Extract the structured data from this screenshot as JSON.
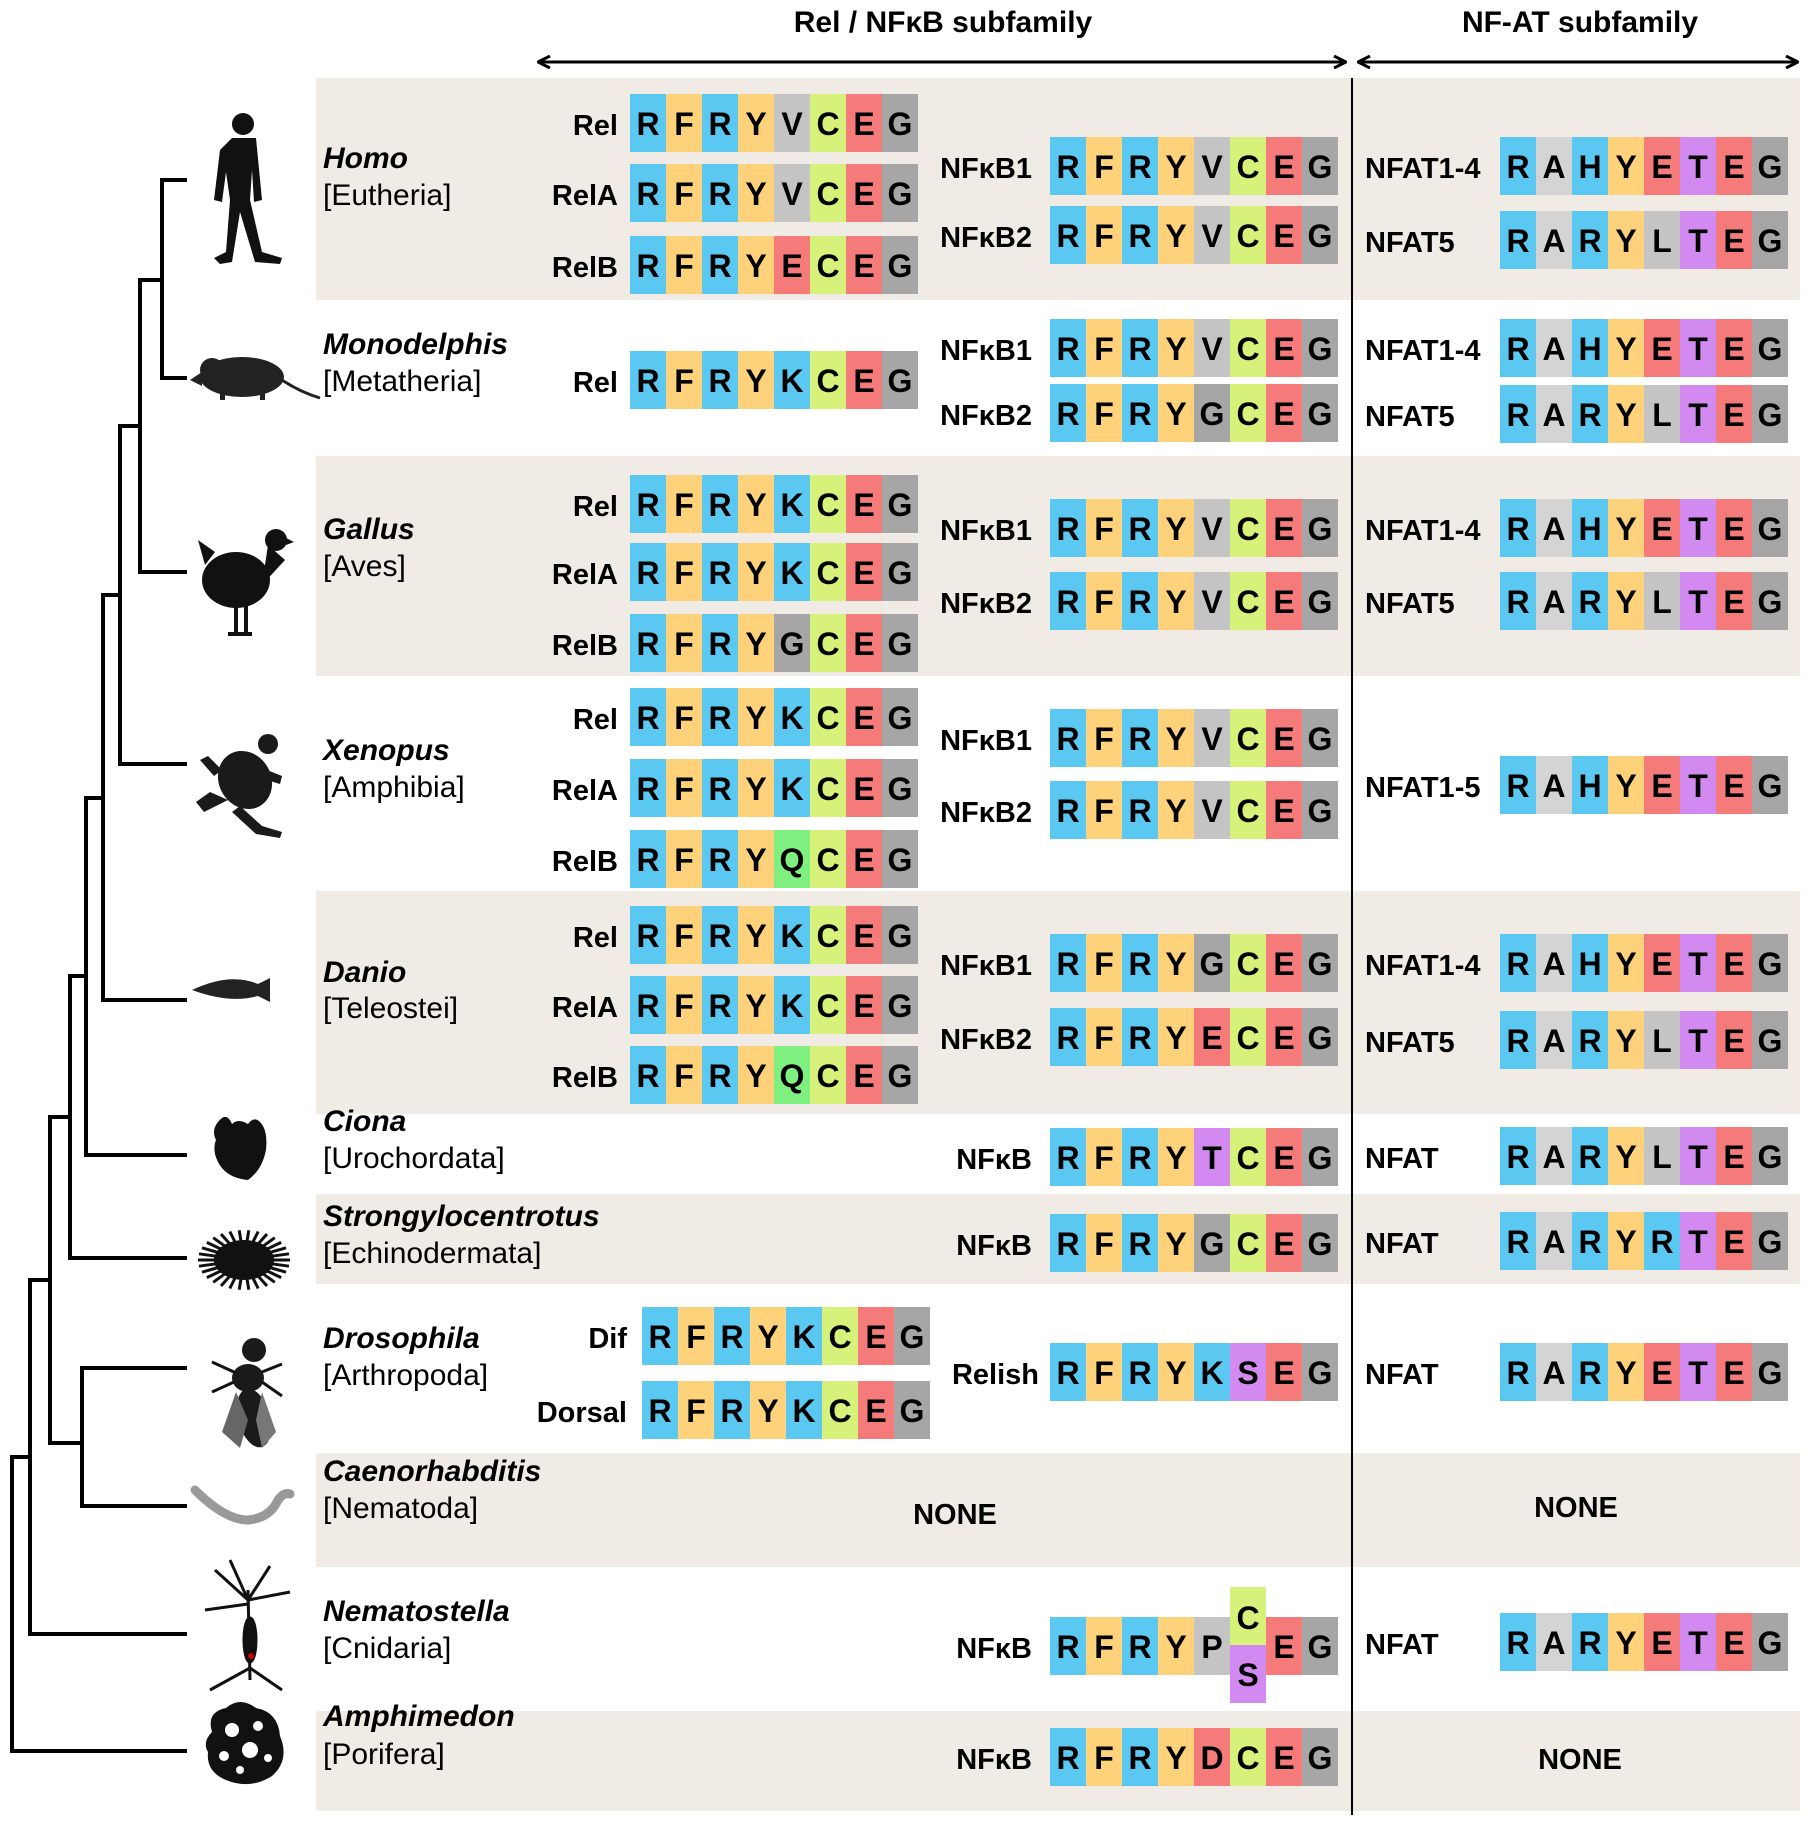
{
  "headers": {
    "rel_nfkb": "Rel / NFκB subfamily",
    "nfat": "NF-AT subfamily"
  },
  "colors": {
    "R": "#5ac8f0",
    "F": "#fdd27a",
    "Y": "#fdd27a",
    "C": "#d6f27a",
    "E": "#f57b7b",
    "G": "#a6a6a6",
    "V": "#c4c4c4",
    "K": "#5ac8f0",
    "A": "#d4d4d4",
    "H": "#5ac8f0",
    "T": "#d38af0",
    "L": "#c4c4c4",
    "Q": "#7fef7f",
    "S": "#d38af0",
    "P": "#c4c4c4",
    "D": "#f57b7b",
    "band": "#f1ebe6",
    "line": "#000000"
  },
  "icons": {
    "homo": "human-silhouette-icon",
    "monodelphis": "opossum-silhouette-icon",
    "gallus": "chicken-silhouette-icon",
    "xenopus": "frog-silhouette-icon",
    "danio": "zebrafish-silhouette-icon",
    "ciona": "sea-squirt-silhouette-icon",
    "strongylocentrotus": "sea-urchin-silhouette-icon",
    "drosophila": "fruit-fly-silhouette-icon",
    "caenorhabditis": "nematode-worm-icon",
    "nematostella": "sea-anemone-silhouette-icon",
    "amphimedon": "sponge-silhouette-icon"
  },
  "taxa": [
    {
      "genus": "Homo",
      "clade": "[Eutheria]",
      "shaded": true,
      "rel": [
        {
          "name": "Rel",
          "seq": "RFRYVCEG"
        },
        {
          "name": "RelA",
          "seq": "RFRYVCEG"
        },
        {
          "name": "RelB",
          "seq": "RFRYECEG"
        }
      ],
      "nfkb": [
        {
          "name": "NFκB1",
          "seq": "RFRYVCEG"
        },
        {
          "name": "NFκB2",
          "seq": "RFRYVCEG"
        }
      ],
      "nfat": [
        {
          "name": "NFAT1-4",
          "seq": "RAHYETEG"
        },
        {
          "name": "NFAT5",
          "seq": "RARYLTEG"
        }
      ]
    },
    {
      "genus": "Monodelphis",
      "clade": "[Metatheria]",
      "shaded": false,
      "rel": [
        {
          "name": "Rel",
          "seq": "RFRYKCEG"
        }
      ],
      "nfkb": [
        {
          "name": "NFκB1",
          "seq": "RFRYVCEG"
        },
        {
          "name": "NFκB2",
          "seq": "RFRYGCEG"
        }
      ],
      "nfat": [
        {
          "name": "NFAT1-4",
          "seq": "RAHYETEG"
        },
        {
          "name": "NFAT5",
          "seq": "RARYLTEG"
        }
      ]
    },
    {
      "genus": "Gallus",
      "clade": "[Aves]",
      "shaded": true,
      "rel": [
        {
          "name": "Rel",
          "seq": "RFRYKCEG"
        },
        {
          "name": "RelA",
          "seq": "RFRYKCEG"
        },
        {
          "name": "RelB",
          "seq": "RFRYGCEG"
        }
      ],
      "nfkb": [
        {
          "name": "NFκB1",
          "seq": "RFRYVCEG"
        },
        {
          "name": "NFκB2",
          "seq": "RFRYVCEG"
        }
      ],
      "nfat": [
        {
          "name": "NFAT1-4",
          "seq": "RAHYETEG"
        },
        {
          "name": "NFAT5",
          "seq": "RARYLTEG"
        }
      ]
    },
    {
      "genus": "Xenopus",
      "clade": "[Amphibia]",
      "shaded": false,
      "rel": [
        {
          "name": "Rel",
          "seq": "RFRYKCEG"
        },
        {
          "name": "RelA",
          "seq": "RFRYKCEG"
        },
        {
          "name": "RelB",
          "seq": "RFRYQCEG"
        }
      ],
      "nfkb": [
        {
          "name": "NFκB1",
          "seq": "RFRYVCEG"
        },
        {
          "name": "NFκB2",
          "seq": "RFRYVCEG"
        }
      ],
      "nfat": [
        {
          "name": "NFAT1-5",
          "seq": "RAHYETEG"
        }
      ]
    },
    {
      "genus": "Danio",
      "clade": "[Teleostei]",
      "shaded": true,
      "rel": [
        {
          "name": "Rel",
          "seq": "RFRYKCEG"
        },
        {
          "name": "RelA",
          "seq": "RFRYKCEG"
        },
        {
          "name": "RelB",
          "seq": "RFRYQCEG"
        }
      ],
      "nfkb": [
        {
          "name": "NFκB1",
          "seq": "RFRYGCEG"
        },
        {
          "name": "NFκB2",
          "seq": "RFRYECEG"
        }
      ],
      "nfat": [
        {
          "name": "NFAT1-4",
          "seq": "RAHYETEG"
        },
        {
          "name": "NFAT5",
          "seq": "RARYLTEG"
        }
      ]
    },
    {
      "genus": "Ciona",
      "clade": "[Urochordata]",
      "shaded": false,
      "rel": [],
      "nfkb": [
        {
          "name": "NFκB",
          "seq": "RFRYTCEG"
        }
      ],
      "nfat": [
        {
          "name": "NFAT",
          "seq": "RARYLTEG"
        }
      ]
    },
    {
      "genus": "Strongylocentrotus",
      "clade": "[Echinodermata]",
      "shaded": true,
      "rel": [],
      "nfkb": [
        {
          "name": "NFκB",
          "seq": "RFRYGCEG"
        }
      ],
      "nfat": [
        {
          "name": "NFAT",
          "seq": "RARYRTEG"
        }
      ]
    },
    {
      "genus": "Drosophila",
      "clade": "[Arthropoda]",
      "shaded": false,
      "rel": [
        {
          "name": "Dif",
          "seq": "RFRYKCEG"
        },
        {
          "name": "Dorsal",
          "seq": "RFRYKCEG"
        }
      ],
      "nfkb": [
        {
          "name": "Relish",
          "seq": "RFRYKSEG"
        }
      ],
      "nfat": [
        {
          "name": "NFAT",
          "seq": "RARYETEG"
        }
      ]
    },
    {
      "genus": "Caenorhabditis",
      "clade": "[Nematoda]",
      "shaded": true,
      "rel": [],
      "nfkb": [],
      "nfat": [],
      "nfkb_none": "NONE",
      "nfat_none": "NONE"
    },
    {
      "genus": "Nematostella",
      "clade": "[Cnidaria]",
      "shaded": false,
      "rel": [],
      "nfkb": [
        {
          "name": "NFκB",
          "seq": "RFRYPCEG",
          "alt": {
            "pos": 5,
            "letter": "S"
          }
        }
      ],
      "nfat": [
        {
          "name": "NFAT",
          "seq": "RARYETEG"
        }
      ]
    },
    {
      "genus": "Amphimedon",
      "clade": "[Porifera]",
      "shaded": true,
      "rel": [],
      "nfkb": [
        {
          "name": "NFκB",
          "seq": "RFRYDCEG"
        }
      ],
      "nfat": [],
      "nfat_none": "NONE"
    }
  ]
}
